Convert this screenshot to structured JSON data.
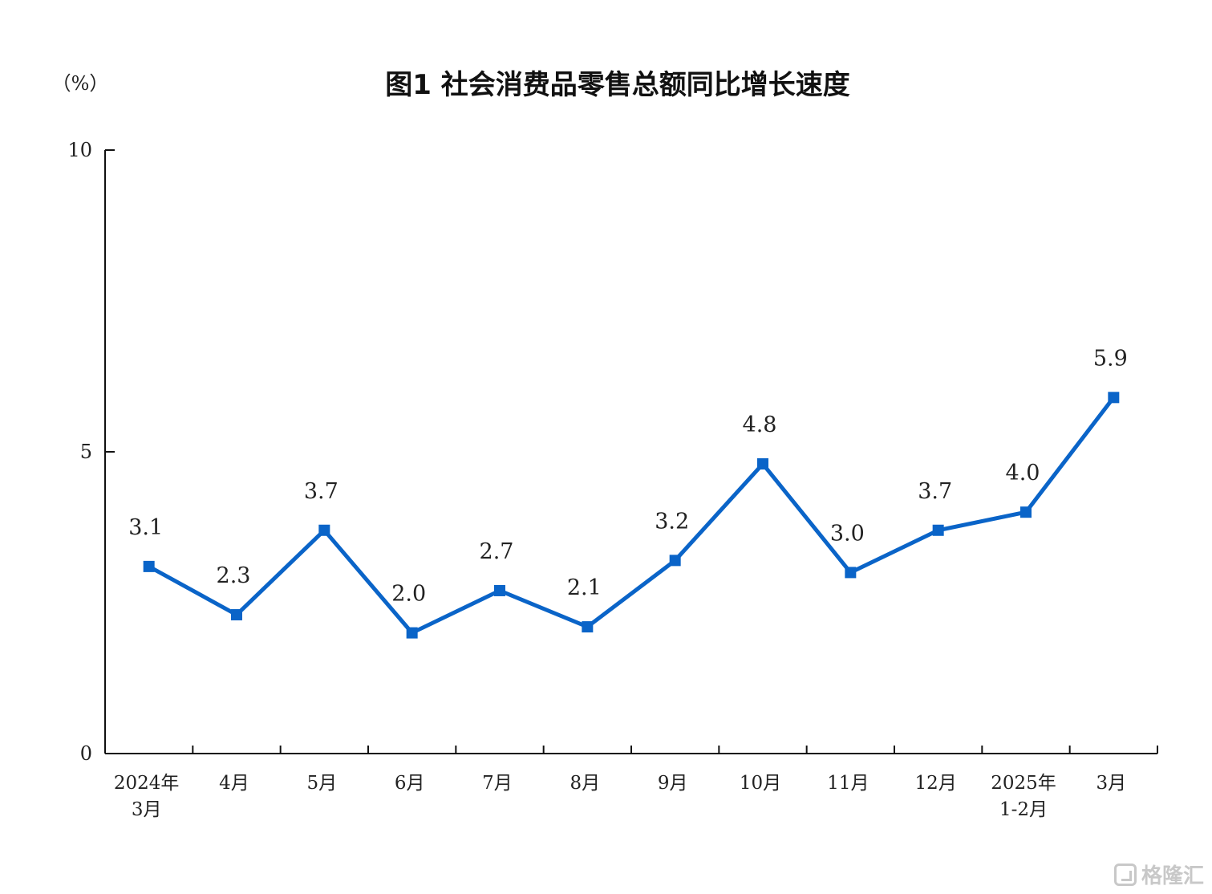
{
  "chart_data": {
    "type": "line",
    "title": "图1  社会消费品零售总额同比增长速度",
    "unit": "（%）",
    "categories": [
      [
        "2024年",
        "3月"
      ],
      [
        "4月"
      ],
      [
        "5月"
      ],
      [
        "6月"
      ],
      [
        "7月"
      ],
      [
        "8月"
      ],
      [
        "9月"
      ],
      [
        "10月"
      ],
      [
        "11月"
      ],
      [
        "12月"
      ],
      [
        "2025年",
        "1-2月"
      ],
      [
        "3月"
      ]
    ],
    "values": [
      3.1,
      2.3,
      3.7,
      2.0,
      2.7,
      2.1,
      3.2,
      4.8,
      3.0,
      3.7,
      4.0,
      5.9
    ],
    "data_labels": [
      "3.1",
      "2.3",
      "3.7",
      "2.0",
      "2.7",
      "2.1",
      "3.2",
      "4.8",
      "3.0",
      "3.7",
      "4.0",
      "5.9"
    ],
    "yticks": [
      0,
      5,
      10
    ],
    "ytick_labels": [
      "0",
      "5",
      "10"
    ],
    "ylim": [
      0,
      10
    ],
    "grid": false,
    "legend": "none",
    "line_color": "#0a64c8",
    "marker": "square"
  },
  "watermark": {
    "text": "格隆汇"
  }
}
